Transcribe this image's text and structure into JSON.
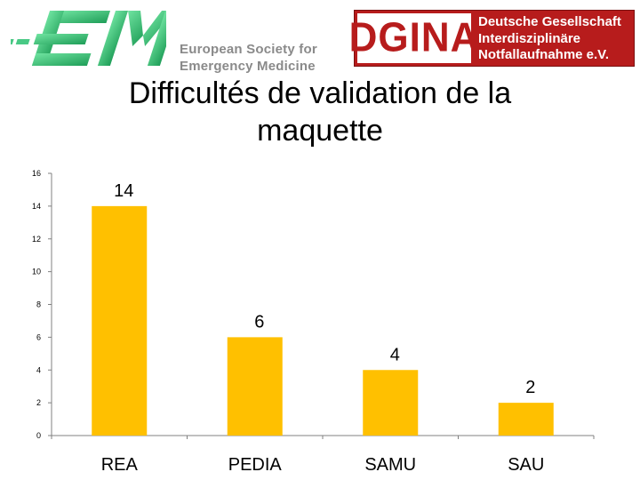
{
  "header": {
    "eusem_logo": {
      "mark_text": "EM",
      "line1": "European Society for",
      "line2": "Emergency Medicine"
    },
    "dgina_logo": {
      "wordmark": "DGINA",
      "line1": "Deutsche Gesellschaft",
      "line2": "Interdisziplinäre",
      "line3": "Notfallaufnahme e.V."
    }
  },
  "slide": {
    "title_line1": "Difficultés de validation de la",
    "title_line2": "maquette"
  },
  "colors": {
    "bar": "#FFC000",
    "axis": "#808080",
    "eusem_green": "#2fbf71",
    "eusem_text": "#8a8a8a",
    "dgina_red": "#b71c1c"
  },
  "chart_data": {
    "type": "bar",
    "categories": [
      "REA",
      "PEDIA",
      "SAMU",
      "SAU"
    ],
    "values": [
      14,
      6,
      4,
      2
    ],
    "data_labels": [
      "14",
      "6",
      "4",
      "2"
    ],
    "ylim": [
      0,
      16
    ],
    "yticks": [
      0,
      2,
      4,
      6,
      8,
      10,
      12,
      14,
      16
    ],
    "grid": false,
    "legend": "none"
  }
}
